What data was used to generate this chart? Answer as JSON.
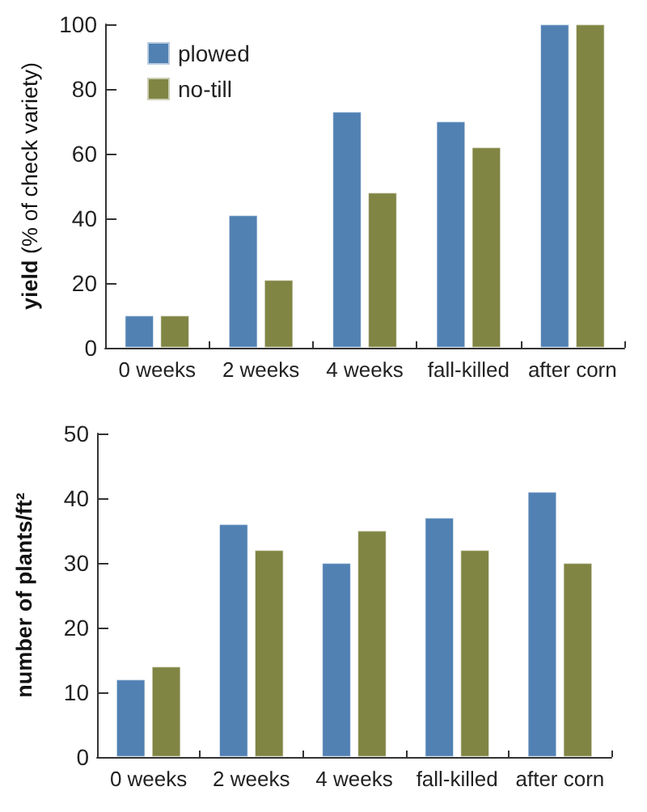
{
  "chart_data": [
    {
      "type": "bar",
      "categories": [
        "0 weeks",
        "2 weeks",
        "4 weeks",
        "fall-killed",
        "after corn"
      ],
      "ylabel": "yield (% of check variety)",
      "ylim": [
        0,
        100
      ],
      "yticks": [
        0,
        20,
        40,
        60,
        80,
        100
      ],
      "grid": false,
      "legend": "top left",
      "series": [
        {
          "name": "plowed",
          "color": "#5181b3",
          "values": [
            10,
            41,
            73,
            70,
            100
          ]
        },
        {
          "name": "no-till",
          "color": "#808544",
          "values": [
            10,
            21,
            48,
            62,
            100
          ]
        }
      ]
    },
    {
      "type": "bar",
      "categories": [
        "0 weeks",
        "2 weeks",
        "4 weeks",
        "fall-killed",
        "after corn"
      ],
      "ylabel": "number of plants/ft²",
      "ylim": [
        0,
        50
      ],
      "yticks": [
        0,
        10,
        20,
        30,
        40,
        50
      ],
      "grid": false,
      "legend": false,
      "series": [
        {
          "color": "#5181b3",
          "values": [
            12,
            36,
            30,
            37,
            41
          ]
        },
        {
          "color": "#808544",
          "values": [
            14,
            32,
            35,
            32,
            30
          ]
        }
      ]
    }
  ]
}
